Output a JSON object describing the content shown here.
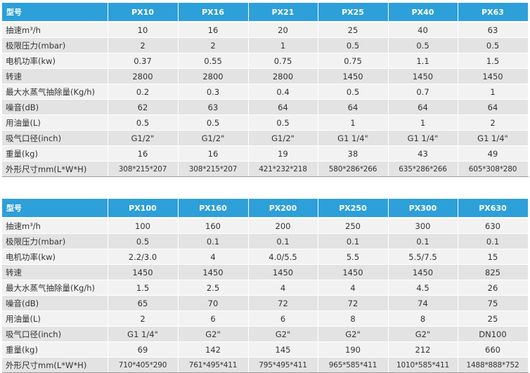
{
  "labels": {
    "model": "型号",
    "speed_pump": "抽速m³/h",
    "ultimate_pressure": "极限压力(mbar)",
    "motor_power": "电机功率(kw)",
    "rpm": "转速",
    "vapor_capacity": "最大水蒸气抽除量(Kg/h)",
    "noise": "噪音(dB)",
    "oil": "用油量(L)",
    "inlet": "吸气口径(inch)",
    "weight": "重量(kg)",
    "dimensions": "外形尺寸mm(L*W*H)"
  },
  "table1": {
    "models": [
      "PX10",
      "PX16",
      "PX21",
      "PX25",
      "PX40",
      "PX63"
    ],
    "rows": {
      "speed_pump": [
        "10",
        "16",
        "20",
        "25",
        "40",
        "63"
      ],
      "ultimate_pressure": [
        "2",
        "2",
        "1",
        "0.5",
        "0.5",
        "0.5"
      ],
      "motor_power": [
        "0.37",
        "0.55",
        "0.75",
        "0.75",
        "1.1",
        "1.5"
      ],
      "rpm": [
        "2800",
        "2800",
        "2800",
        "1450",
        "1450",
        "1450"
      ],
      "vapor_capacity": [
        "0.2",
        "0.3",
        "0.4",
        "0.5",
        "0.7",
        "1"
      ],
      "noise": [
        "62",
        "63",
        "64",
        "64",
        "64",
        "64"
      ],
      "oil": [
        "0.5",
        "0.5",
        "0.5",
        "1",
        "1",
        "2"
      ],
      "inlet": [
        "G1/2\"",
        "G1/2\"",
        "G1/2\"",
        "G1 1/4\"",
        "G1 1/4\"",
        "G1 1/4\""
      ],
      "weight": [
        "16",
        "16",
        "19",
        "38",
        "43",
        "49"
      ],
      "dimensions": [
        "308*215*207",
        "308*215*207",
        "421*232*218",
        "580*286*266",
        "635*286*266",
        "605*308*280"
      ]
    }
  },
  "table2": {
    "models": [
      "PX100",
      "PX160",
      "PX200",
      "PX250",
      "PX300",
      "PX630"
    ],
    "rows": {
      "speed_pump": [
        "100",
        "160",
        "200",
        "250",
        "300",
        "630"
      ],
      "ultimate_pressure": [
        "0.5",
        "0.1",
        "0.1",
        "0.1",
        "0.1",
        "0.1"
      ],
      "motor_power": [
        "2.2/3.0",
        "4",
        "4.0/5.5",
        "5.5",
        "5.5/7.5",
        "15"
      ],
      "rpm": [
        "1450",
        "1450",
        "1450",
        "1450",
        "1450",
        "825"
      ],
      "vapor_capacity": [
        "1.5",
        "2.5",
        "4",
        "4",
        "4.5",
        "26"
      ],
      "noise": [
        "65",
        "70",
        "72",
        "72",
        "74",
        "75"
      ],
      "oil": [
        "2",
        "6",
        "6",
        "8",
        "8",
        "25"
      ],
      "inlet": [
        "G1 1/4\"",
        "G2\"",
        "G2\"",
        "G2\"",
        "G2\"",
        "DN100"
      ],
      "weight": [
        "69",
        "142",
        "145",
        "190",
        "212",
        "660"
      ],
      "dimensions": [
        "710*405*290",
        "761*495*411",
        "795*495*411",
        "965*585*411",
        "1010*585*411",
        "1488*888*752"
      ]
    }
  },
  "colors": {
    "header_bg": "#2d9fd9",
    "row_light": "#f2f2f2",
    "row_dark": "#e3e3e3"
  }
}
